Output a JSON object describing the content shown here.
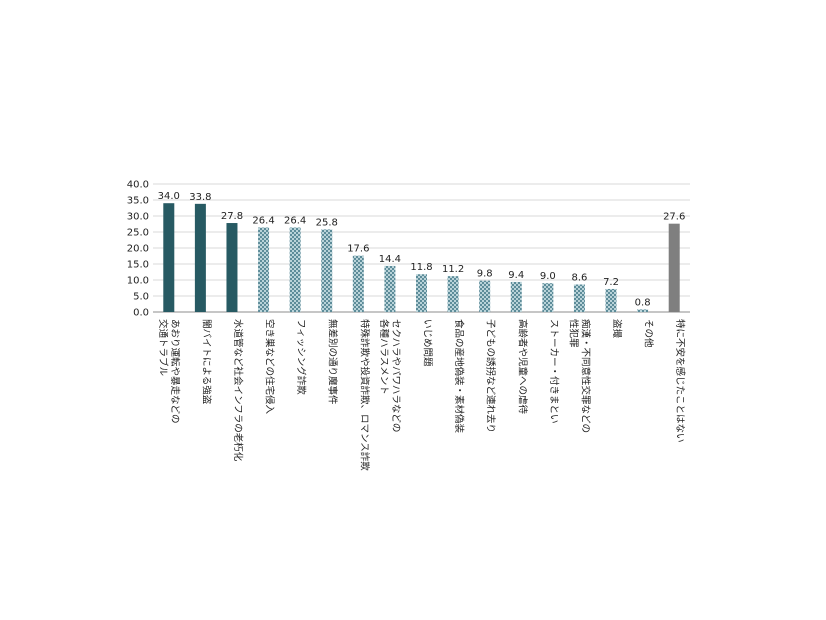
{
  "chart_data": {
    "type": "bar",
    "title": "",
    "xlabel": "",
    "ylabel": "",
    "ylim": [
      0,
      40
    ],
    "yticks": [
      "0.0",
      "5.0",
      "10.0",
      "15.0",
      "20.0",
      "25.0",
      "30.0",
      "35.0",
      "40.0"
    ],
    "grid": true,
    "legend": "none",
    "colors": {
      "dark": "#275a63",
      "pattern_base": "#b9d3d9",
      "pattern_dot": "#5d8c99",
      "gray": "#7f7f7f",
      "grid": "#d9d9d9",
      "axis": "#8c8c8c"
    },
    "categories": [
      {
        "lines": [
          "あおり運転や暴走などの",
          "交通トラブル"
        ],
        "value": 34.0,
        "label": "34.0",
        "style": "dark"
      },
      {
        "lines": [
          "闇バイトによる強盗"
        ],
        "value": 33.8,
        "label": "33.8",
        "style": "dark"
      },
      {
        "lines": [
          "水道管など社会インフラの老朽化"
        ],
        "value": 27.8,
        "label": "27.8",
        "style": "dark"
      },
      {
        "lines": [
          "空き巣などの住宅侵入"
        ],
        "value": 26.4,
        "label": "26.4",
        "style": "pattern"
      },
      {
        "lines": [
          "フィッシング詐欺"
        ],
        "value": 26.4,
        "label": "26.4",
        "style": "pattern"
      },
      {
        "lines": [
          "無差別の通り魔事件"
        ],
        "value": 25.8,
        "label": "25.8",
        "style": "pattern"
      },
      {
        "lines": [
          "特殊詐欺や投資詐欺、ロマンス詐欺"
        ],
        "value": 17.6,
        "label": "17.6",
        "style": "pattern"
      },
      {
        "lines": [
          "セクハラやパワハラなどの",
          "各種ハラスメント"
        ],
        "value": 14.4,
        "label": "14.4",
        "style": "pattern"
      },
      {
        "lines": [
          "いじめ問題"
        ],
        "value": 11.8,
        "label": "11.8",
        "style": "pattern"
      },
      {
        "lines": [
          "食品の産地偽装・素材偽装"
        ],
        "value": 11.2,
        "label": "11.2",
        "style": "pattern"
      },
      {
        "lines": [
          "子どもの誘拐など連れ去り"
        ],
        "value": 9.8,
        "label": "9.8",
        "style": "pattern"
      },
      {
        "lines": [
          "高齢者や児童への虐待"
        ],
        "value": 9.4,
        "label": "9.4",
        "style": "pattern"
      },
      {
        "lines": [
          "ストーカー・付きまとい"
        ],
        "value": 9.0,
        "label": "9.0",
        "style": "pattern"
      },
      {
        "lines": [
          "痴漢・不同意性交罪などの",
          "性犯罪"
        ],
        "value": 8.6,
        "label": "8.6",
        "style": "pattern"
      },
      {
        "lines": [
          "盗撮"
        ],
        "value": 7.2,
        "label": "7.2",
        "style": "pattern"
      },
      {
        "lines": [
          "その他"
        ],
        "value": 0.8,
        "label": "0.8",
        "style": "pattern"
      },
      {
        "lines": [
          "特に不安を感じたことはない"
        ],
        "value": 27.6,
        "label": "27.6",
        "style": "gray"
      }
    ]
  }
}
